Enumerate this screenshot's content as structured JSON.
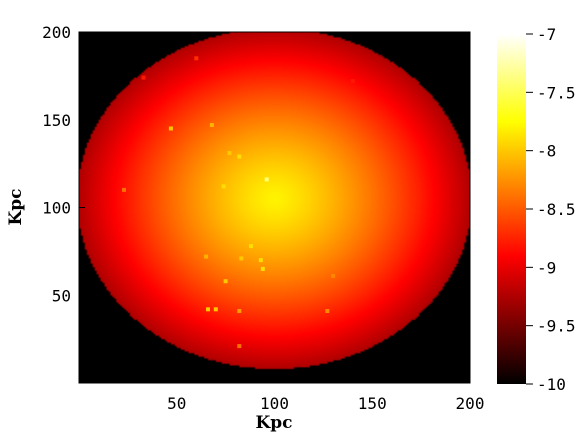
{
  "chart_data": {
    "type": "heatmap",
    "title": "",
    "xlabel": "Kpc",
    "ylabel": "Kpc",
    "xlim": [
      0,
      200
    ],
    "ylim": [
      0,
      200
    ],
    "xticks": [
      "50",
      "100",
      "150",
      "200"
    ],
    "yticks": [
      "50",
      "100",
      "150",
      "200"
    ],
    "colorbar": {
      "range": [
        -10,
        -7
      ],
      "ticks": [
        "-7",
        "-7.5",
        "-8",
        "-8.5",
        "-9",
        "-9.5",
        "-10"
      ],
      "colormap": "hot",
      "colors": [
        "#000000",
        "#ff0000",
        "#ffff00",
        "#ffffff"
      ]
    },
    "background_value": -10,
    "field": {
      "center": [
        100,
        105
      ],
      "radius_x": 101,
      "radius_y": 97,
      "peak_value": -7.8,
      "edge_value": -9.25
    },
    "point_sources": [
      {
        "x": 47,
        "y": 145,
        "value": -8.0
      },
      {
        "x": 68,
        "y": 147,
        "value": -8.1
      },
      {
        "x": 77,
        "y": 131,
        "value": -8.0
      },
      {
        "x": 82,
        "y": 129,
        "value": -7.9
      },
      {
        "x": 74,
        "y": 112,
        "value": -7.9
      },
      {
        "x": 96,
        "y": 116,
        "value": -7.4
      },
      {
        "x": 23,
        "y": 110,
        "value": -8.4
      },
      {
        "x": 88,
        "y": 78,
        "value": -7.9
      },
      {
        "x": 93,
        "y": 70,
        "value": -7.9
      },
      {
        "x": 94,
        "y": 65,
        "value": -7.9
      },
      {
        "x": 83,
        "y": 71,
        "value": -8.0
      },
      {
        "x": 65,
        "y": 72,
        "value": -8.1
      },
      {
        "x": 75,
        "y": 58,
        "value": -8.0
      },
      {
        "x": 66,
        "y": 42,
        "value": -8.0
      },
      {
        "x": 70,
        "y": 42,
        "value": -8.0
      },
      {
        "x": 82,
        "y": 41,
        "value": -8.2
      },
      {
        "x": 127,
        "y": 41,
        "value": -8.3
      },
      {
        "x": 82,
        "y": 21,
        "value": -8.4
      },
      {
        "x": 130,
        "y": 61,
        "value": -8.3
      },
      {
        "x": 60,
        "y": 185,
        "value": -8.7
      },
      {
        "x": 33,
        "y": 174,
        "value": -8.8
      },
      {
        "x": 140,
        "y": 172,
        "value": -8.8
      }
    ]
  }
}
